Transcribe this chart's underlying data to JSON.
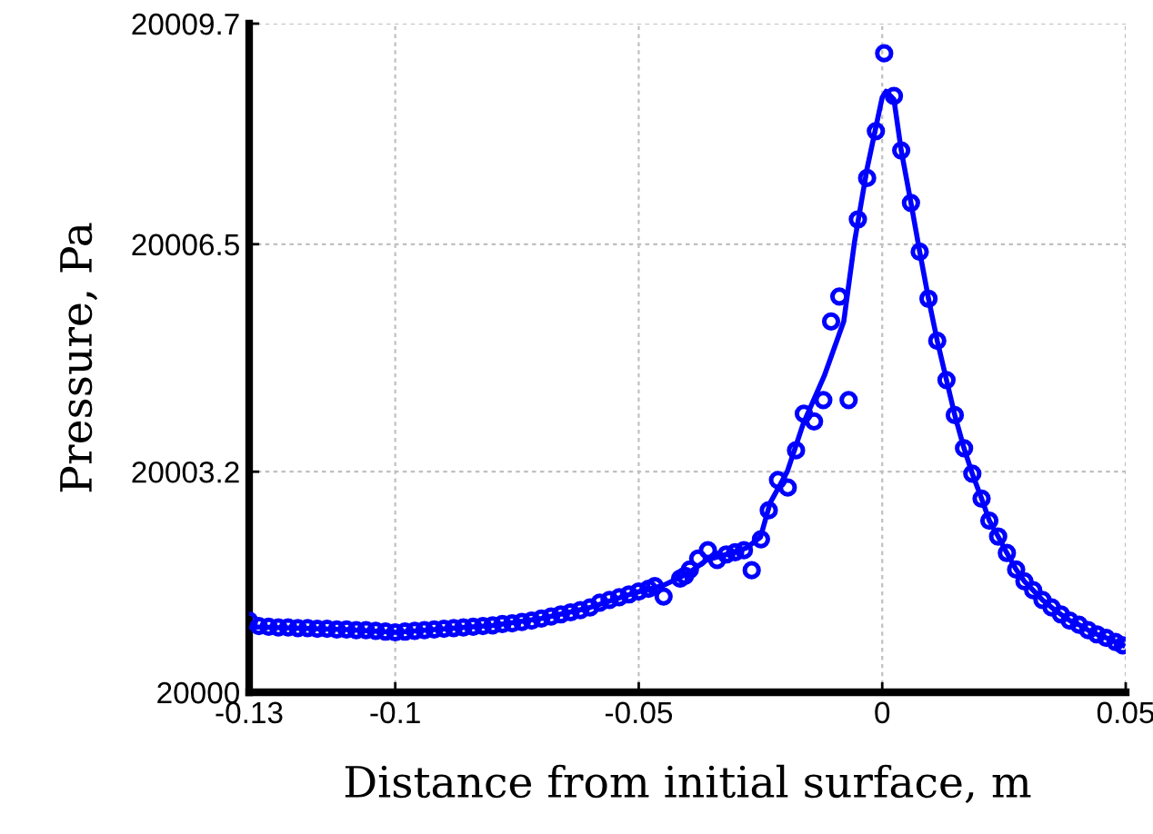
{
  "chart_data": {
    "type": "scatter",
    "xlabel": "Distance from initial surface, m",
    "ylabel": "Pressure, Pa",
    "xlim": [
      -0.13,
      0.05
    ],
    "ylim": [
      20000,
      20009.7
    ],
    "xticks": [
      -0.13,
      -0.1,
      -0.05,
      0,
      0.05
    ],
    "yticks": [
      20000,
      20003.2,
      20006.5,
      20009.7
    ],
    "grid": true,
    "legend": false,
    "series": [
      {
        "marker": "circle",
        "color": "#0000ff",
        "x": [
          -0.13,
          -0.128,
          -0.126,
          -0.124,
          -0.122,
          -0.12,
          -0.118,
          -0.116,
          -0.114,
          -0.112,
          -0.11,
          -0.108,
          -0.106,
          -0.104,
          -0.102,
          -0.1,
          -0.098,
          -0.096,
          -0.094,
          -0.092,
          -0.09,
          -0.088,
          -0.086,
          -0.084,
          -0.082,
          -0.08,
          -0.078,
          -0.076,
          -0.074,
          -0.072,
          -0.07,
          -0.068,
          -0.066,
          -0.064,
          -0.062,
          -0.06,
          -0.058,
          -0.056,
          -0.054,
          -0.052,
          -0.05,
          -0.048,
          -0.0467,
          -0.0449,
          -0.0415,
          -0.0405,
          -0.0395,
          -0.0378,
          -0.0358,
          -0.0339,
          -0.032,
          -0.0302,
          -0.0284,
          -0.0268,
          -0.0249,
          -0.0233,
          -0.0214,
          -0.0194,
          -0.0177,
          -0.0161,
          -0.014,
          -0.0121,
          -0.0105,
          -0.0088,
          -0.0069,
          -0.005,
          -0.0031,
          -0.0013,
          0.0004,
          0.0024,
          0.0039,
          0.0059,
          0.0077,
          0.0095,
          0.0113,
          0.0132,
          0.0149,
          0.0168,
          0.0185,
          0.0204,
          0.022,
          0.0238,
          0.0256,
          0.0275,
          0.0292,
          0.031,
          0.0329,
          0.0348,
          0.0367,
          0.0385,
          0.0404,
          0.0423,
          0.0441,
          0.046,
          0.0479,
          0.0494
        ],
        "values": [
          20001.04,
          20000.96,
          20000.95,
          20000.94,
          20000.94,
          20000.93,
          20000.93,
          20000.92,
          20000.92,
          20000.91,
          20000.91,
          20000.9,
          20000.9,
          20000.89,
          20000.88,
          20000.87,
          20000.88,
          20000.89,
          20000.9,
          20000.91,
          20000.92,
          20000.93,
          20000.94,
          20000.95,
          20000.96,
          20000.97,
          20000.99,
          20001.0,
          20001.02,
          20001.04,
          20001.07,
          20001.1,
          20001.13,
          20001.16,
          20001.19,
          20001.23,
          20001.3,
          20001.34,
          20001.38,
          20001.42,
          20001.46,
          20001.5,
          20001.54,
          20001.39,
          20001.65,
          20001.69,
          20001.78,
          20001.94,
          20002.06,
          20001.92,
          20002.0,
          20002.03,
          20002.06,
          20001.77,
          20002.22,
          20002.64,
          20003.08,
          20002.97,
          20003.51,
          20004.04,
          20003.93,
          20004.24,
          20005.38,
          20005.74,
          20004.24,
          20006.86,
          20007.46,
          20008.14,
          20009.27,
          20008.65,
          20007.86,
          20007.1,
          20006.39,
          20005.71,
          20005.1,
          20004.53,
          20004.02,
          20003.54,
          20003.17,
          20002.81,
          20002.49,
          20002.26,
          20002.02,
          20001.78,
          20001.61,
          20001.48,
          20001.34,
          20001.23,
          20001.13,
          20001.04,
          20000.98,
          20000.9,
          20000.84,
          20000.79,
          20000.73,
          20000.68
        ]
      },
      {
        "type": "line",
        "line_style": "solid",
        "marker": "none",
        "color": "#0000ff",
        "x": [
          -0.13,
          -0.12,
          -0.11,
          -0.1,
          -0.09,
          -0.08,
          -0.07,
          -0.06,
          -0.05,
          -0.045,
          -0.04,
          -0.036,
          -0.032,
          -0.028,
          -0.025,
          -0.023,
          -0.0195,
          -0.0162,
          -0.0119,
          -0.0079,
          -0.0057,
          -0.0031,
          -0.0013,
          0.0,
          0.0008,
          0.0024,
          0.0039,
          0.0059,
          0.0077,
          0.0095,
          0.0113,
          0.0132,
          0.0149,
          0.0168,
          0.0185,
          0.0204,
          0.022,
          0.0238,
          0.0256,
          0.0275,
          0.0292,
          0.031,
          0.0329,
          0.0348,
          0.0367,
          0.0385,
          0.0404,
          0.0423,
          0.0441,
          0.046,
          0.0479,
          0.0494
        ],
        "values": [
          20000.95,
          20000.93,
          20000.91,
          20000.87,
          20000.92,
          20000.97,
          20001.07,
          20001.23,
          20001.46,
          20001.55,
          20001.72,
          20001.92,
          20002.0,
          20002.09,
          20002.25,
          20002.75,
          20003.2,
          20003.9,
          20004.59,
          20005.38,
          20006.53,
          20007.6,
          20008.2,
          20008.63,
          20008.72,
          20008.6,
          20007.86,
          20007.1,
          20006.39,
          20005.71,
          20005.1,
          20004.53,
          20004.02,
          20003.54,
          20003.17,
          20002.81,
          20002.49,
          20002.26,
          20002.02,
          20001.78,
          20001.61,
          20001.48,
          20001.34,
          20001.23,
          20001.13,
          20001.04,
          20000.98,
          20000.9,
          20000.84,
          20000.79,
          20000.73,
          20000.68
        ]
      }
    ]
  }
}
